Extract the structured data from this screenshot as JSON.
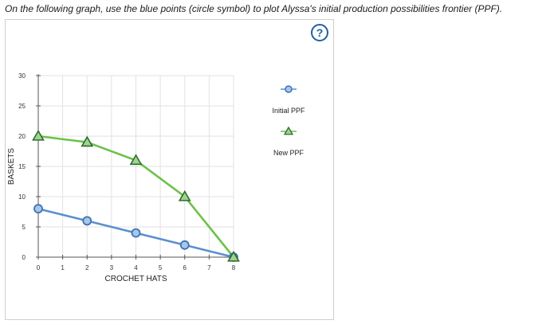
{
  "instruction": "On the following graph, use the blue points (circle symbol) to plot Alyssa's initial production possibilities frontier (PPF).",
  "help_label": "?",
  "legend": [
    {
      "label": "Initial PPF",
      "symbol": "circle",
      "color": "#3b73b5",
      "fill": "#a9c6e6",
      "line_color": "#5b8fcf"
    },
    {
      "label": "New PPF",
      "symbol": "triangle",
      "color": "#2f6b2f",
      "fill": "#9fd38f",
      "line_color": "#6cc24a"
    }
  ],
  "chart_data": {
    "type": "line",
    "xlabel": "CROCHET HATS",
    "ylabel": "BASKETS",
    "xlim": [
      0,
      8
    ],
    "ylim": [
      0,
      30
    ],
    "x_ticks": [
      "0",
      "1",
      "2",
      "3",
      "4",
      "5",
      "6",
      "7",
      "8"
    ],
    "y_ticks": [
      "0",
      "5",
      "10",
      "15",
      "20",
      "25",
      "30"
    ],
    "grid": true,
    "legend_position": "right",
    "series": [
      {
        "name": "Initial PPF",
        "marker": "circle",
        "color": "#5b8fcf",
        "points": [
          [
            0,
            8
          ],
          [
            2,
            6
          ],
          [
            4,
            4
          ],
          [
            6,
            2
          ],
          [
            8,
            0
          ]
        ]
      },
      {
        "name": "New PPF",
        "marker": "triangle",
        "color": "#6cc24a",
        "points": [
          [
            0,
            20
          ],
          [
            2,
            19
          ],
          [
            4,
            16
          ],
          [
            6,
            10
          ],
          [
            8,
            0
          ]
        ]
      }
    ]
  }
}
